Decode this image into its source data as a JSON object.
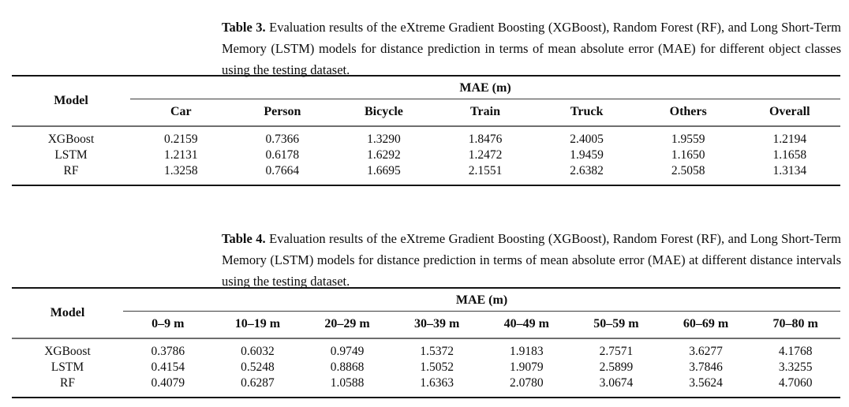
{
  "captions": {
    "table3": {
      "label": "Table 3.",
      "text": "Evaluation results of the eXtreme Gradient Boosting (XGBoost), Random Forest (RF), and Long Short-Term Memory (LSTM) models for distance prediction in terms of mean absolute error (MAE) for different object classes using the testing dataset."
    },
    "table4": {
      "label": "Table 4.",
      "text": "Evaluation results of the eXtreme Gradient Boosting (XGBoost), Random Forest (RF), and Long Short-Term Memory (LSTM) models for distance prediction in terms of mean absolute error (MAE) at different distance intervals using the testing dataset."
    }
  },
  "table3": {
    "model_header": "Model",
    "span_header": "MAE (m)",
    "columns": [
      "Car",
      "Person",
      "Bicycle",
      "Train",
      "Truck",
      "Others",
      "Overall"
    ],
    "rows": [
      {
        "model": "XGBoost",
        "values": [
          "0.2159",
          "0.7366",
          "1.3290",
          "1.8476",
          "2.4005",
          "1.9559",
          "1.2194"
        ]
      },
      {
        "model": "LSTM",
        "values": [
          "1.2131",
          "0.6178",
          "1.6292",
          "1.2472",
          "1.9459",
          "1.1650",
          "1.1658"
        ]
      },
      {
        "model": "RF",
        "values": [
          "1.3258",
          "0.7664",
          "1.6695",
          "2.1551",
          "2.6382",
          "2.5058",
          "1.3134"
        ]
      }
    ]
  },
  "table4": {
    "model_header": "Model",
    "span_header": "MAE (m)",
    "columns": [
      "0–9 m",
      "10–19 m",
      "20–29 m",
      "30–39 m",
      "40–49 m",
      "50–59 m",
      "60–69 m",
      "70–80 m"
    ],
    "rows": [
      {
        "model": "XGBoost",
        "values": [
          "0.3786",
          "0.6032",
          "0.9749",
          "1.5372",
          "1.9183",
          "2.7571",
          "3.6277",
          "4.1768"
        ]
      },
      {
        "model": "LSTM",
        "values": [
          "0.4154",
          "0.5248",
          "0.8868",
          "1.5052",
          "1.9079",
          "2.5899",
          "3.7846",
          "3.3255"
        ]
      },
      {
        "model": "RF",
        "values": [
          "0.4079",
          "0.6287",
          "1.0588",
          "1.6363",
          "2.0780",
          "3.0674",
          "3.5624",
          "4.7060"
        ]
      }
    ]
  }
}
